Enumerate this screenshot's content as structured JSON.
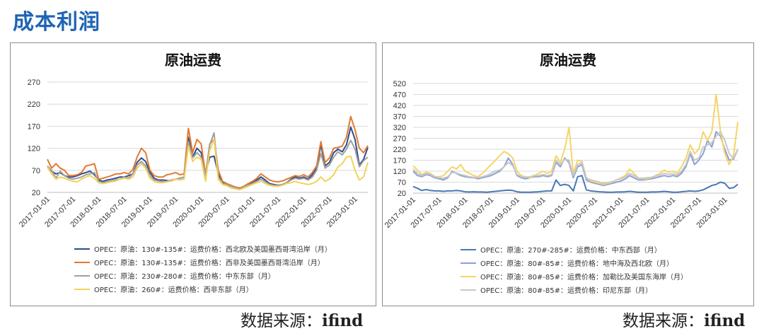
{
  "page": {
    "title": "成本利润"
  },
  "source": {
    "label": "数据来源：",
    "value": "ifind"
  },
  "chart_data": [
    {
      "type": "line",
      "title": "原油运费",
      "xlabel": "",
      "ylabel": "",
      "ylim": [
        20,
        270
      ],
      "yticks": [
        20,
        70,
        120,
        170,
        220,
        270
      ],
      "xtick_labels": [
        "2017-01-01",
        "2017-07-01",
        "2018-01-01",
        "2018-07-01",
        "2019-01-01",
        "2019-07-01",
        "2020-01-01",
        "2020-07-01",
        "2021-01-01",
        "2021-07-01",
        "2022-01-01",
        "2022-07-01",
        "2023-01-01"
      ],
      "x_count": 76,
      "grid": true,
      "legend_position": "bottom",
      "colors": [
        "#2e4d8f",
        "#e07a2e",
        "#a0a0a0",
        "#f2d35a"
      ],
      "series": [
        {
          "name": "OPEC：原油：130#-135#：运费价格：西北欧及美国墨西哥湾沿岸（月）",
          "values": [
            78,
            68,
            62,
            65,
            58,
            55,
            55,
            58,
            62,
            65,
            68,
            60,
            48,
            45,
            48,
            50,
            52,
            55,
            55,
            58,
            62,
            88,
            98,
            90,
            65,
            52,
            48,
            48,
            47,
            46,
            50,
            52,
            54,
            145,
            100,
            120,
            110,
            62,
            100,
            102,
            62,
            42,
            38,
            34,
            32,
            30,
            32,
            36,
            42,
            48,
            55,
            48,
            40,
            38,
            36,
            38,
            42,
            50,
            55,
            52,
            55,
            50,
            60,
            75,
            128,
            80,
            88,
            110,
            118,
            112,
            128,
            168,
            140,
            82,
            95,
            122
          ]
        },
        {
          "name": "OPEC：原油：130#-135#：运费价格：西非及美国墨西哥湾沿岸（月）",
          "values": [
            95,
            75,
            85,
            75,
            70,
            58,
            58,
            60,
            65,
            80,
            82,
            85,
            50,
            52,
            55,
            58,
            62,
            62,
            65,
            62,
            72,
            100,
            120,
            110,
            70,
            58,
            55,
            55,
            60,
            62,
            65,
            60,
            62,
            165,
            110,
            140,
            130,
            60,
            130,
            140,
            70,
            45,
            40,
            36,
            32,
            30,
            34,
            40,
            45,
            52,
            62,
            55,
            48,
            45,
            44,
            46,
            50,
            54,
            58,
            56,
            60,
            55,
            65,
            80,
            135,
            88,
            98,
            120,
            122,
            125,
            145,
            192,
            162,
            120,
            110,
            126
          ]
        },
        {
          "name": "OPEC：原油：230#-280#：运费价格：中东东部（月）",
          "values": [
            80,
            70,
            52,
            68,
            58,
            52,
            50,
            52,
            55,
            60,
            62,
            65,
            45,
            42,
            44,
            46,
            48,
            50,
            55,
            52,
            62,
            82,
            90,
            80,
            58,
            48,
            46,
            44,
            45,
            48,
            50,
            52,
            55,
            135,
            98,
            110,
            100,
            58,
            128,
            155,
            55,
            40,
            38,
            34,
            30,
            28,
            32,
            36,
            40,
            45,
            50,
            44,
            38,
            36,
            35,
            38,
            42,
            48,
            52,
            50,
            52,
            48,
            55,
            70,
            108,
            75,
            82,
            100,
            112,
            105,
            118,
            138,
            118,
            78,
            92,
            100
          ]
        },
        {
          "name": "OPEC：原油：260#：运费价格：西非东部（月）",
          "values": [
            78,
            62,
            50,
            55,
            52,
            48,
            45,
            44,
            50,
            55,
            58,
            52,
            42,
            40,
            42,
            44,
            46,
            50,
            52,
            50,
            55,
            75,
            85,
            75,
            52,
            45,
            42,
            42,
            44,
            46,
            50,
            48,
            50,
            125,
            90,
            100,
            95,
            45,
            115,
            140,
            50,
            38,
            35,
            30,
            28,
            26,
            30,
            34,
            38,
            42,
            45,
            40,
            36,
            34,
            34,
            36,
            40,
            42,
            45,
            42,
            40,
            38,
            40,
            45,
            55,
            45,
            50,
            60,
            78,
            85,
            100,
            102,
            70,
            48,
            55,
            88
          ]
        }
      ]
    },
    {
      "type": "line",
      "title": "原油运费",
      "xlabel": "",
      "ylabel": "",
      "ylim": [
        20,
        520
      ],
      "yticks": [
        20,
        70,
        120,
        170,
        220,
        270,
        320,
        370,
        420,
        470,
        520
      ],
      "xtick_labels": [
        "2017-01-01",
        "2017-07-01",
        "2018-01-01",
        "2018-07-01",
        "2019-01-01",
        "2019-07-01",
        "2020-01-01",
        "2020-07-01",
        "2021-01-01",
        "2021-07-01",
        "2022-01-01",
        "2022-07-01",
        "2023-01-01"
      ],
      "x_count": 76,
      "grid": true,
      "legend_position": "bottom",
      "colors": [
        "#4a79b5",
        "#8ea0d4",
        "#f5d568",
        "#c8c8c8"
      ],
      "series": [
        {
          "name": "OPEC：原油：270#-285#：运费价格：中东西部（月）",
          "values": [
            50,
            42,
            32,
            36,
            32,
            30,
            30,
            28,
            30,
            30,
            32,
            30,
            26,
            25,
            26,
            25,
            25,
            24,
            26,
            28,
            30,
            32,
            34,
            32,
            26,
            24,
            24,
            24,
            25,
            26,
            28,
            30,
            30,
            80,
            55,
            60,
            55,
            30,
            95,
            100,
            35,
            30,
            28,
            26,
            25,
            24,
            24,
            25,
            25,
            26,
            28,
            26,
            24,
            24,
            24,
            25,
            25,
            26,
            28,
            26,
            24,
            24,
            26,
            28,
            30,
            28,
            30,
            35,
            45,
            55,
            60,
            70,
            65,
            42,
            45,
            60
          ]
        },
        {
          "name": "OPEC：原油：80#-85#：运费价格：地中海及西北欧（月）",
          "values": [
            120,
            100,
            95,
            105,
            100,
            90,
            85,
            80,
            90,
            120,
            110,
            100,
            95,
            92,
            90,
            85,
            90,
            95,
            100,
            110,
            120,
            140,
            180,
            150,
            100,
            90,
            85,
            90,
            95,
            95,
            100,
            95,
            100,
            160,
            140,
            180,
            160,
            90,
            140,
            150,
            80,
            70,
            65,
            60,
            55,
            60,
            65,
            70,
            75,
            85,
            100,
            90,
            80,
            80,
            82,
            85,
            90,
            95,
            100,
            95,
            100,
            95,
            110,
            140,
            200,
            150,
            170,
            200,
            260,
            230,
            300,
            280,
            220,
            170,
            175,
            220
          ]
        },
        {
          "name": "OPEC：原油：80#-85#：运费价格：加勒比及美国东海岸（月）",
          "values": [
            145,
            125,
            105,
            115,
            110,
            95,
            95,
            100,
            120,
            140,
            130,
            150,
            120,
            110,
            100,
            95,
            110,
            130,
            150,
            170,
            190,
            210,
            200,
            180,
            120,
            100,
            95,
            90,
            100,
            110,
            120,
            110,
            120,
            190,
            160,
            220,
            320,
            110,
            170,
            165,
            90,
            75,
            70,
            65,
            60,
            65,
            70,
            80,
            90,
            100,
            130,
            110,
            90,
            85,
            85,
            90,
            100,
            110,
            125,
            115,
            120,
            110,
            140,
            180,
            240,
            200,
            220,
            300,
            260,
            300,
            470,
            300,
            200,
            150,
            190,
            345
          ]
        },
        {
          "name": "OPEC：原油：80#-85#：运费价格：印尼东部（月）",
          "values": [
            130,
            110,
            100,
            110,
            105,
            95,
            90,
            88,
            95,
            115,
            112,
            105,
            100,
            95,
            92,
            90,
            95,
            100,
            110,
            120,
            125,
            140,
            160,
            145,
            105,
            95,
            92,
            95,
            100,
            100,
            105,
            100,
            105,
            170,
            150,
            175,
            170,
            100,
            150,
            160,
            90,
            80,
            75,
            70,
            65,
            68,
            72,
            80,
            85,
            95,
            110,
            100,
            88,
            88,
            90,
            92,
            98,
            102,
            110,
            105,
            108,
            102,
            120,
            150,
            210,
            170,
            180,
            230,
            240,
            250,
            280,
            300,
            260,
            200,
            180,
            220
          ]
        }
      ]
    }
  ]
}
